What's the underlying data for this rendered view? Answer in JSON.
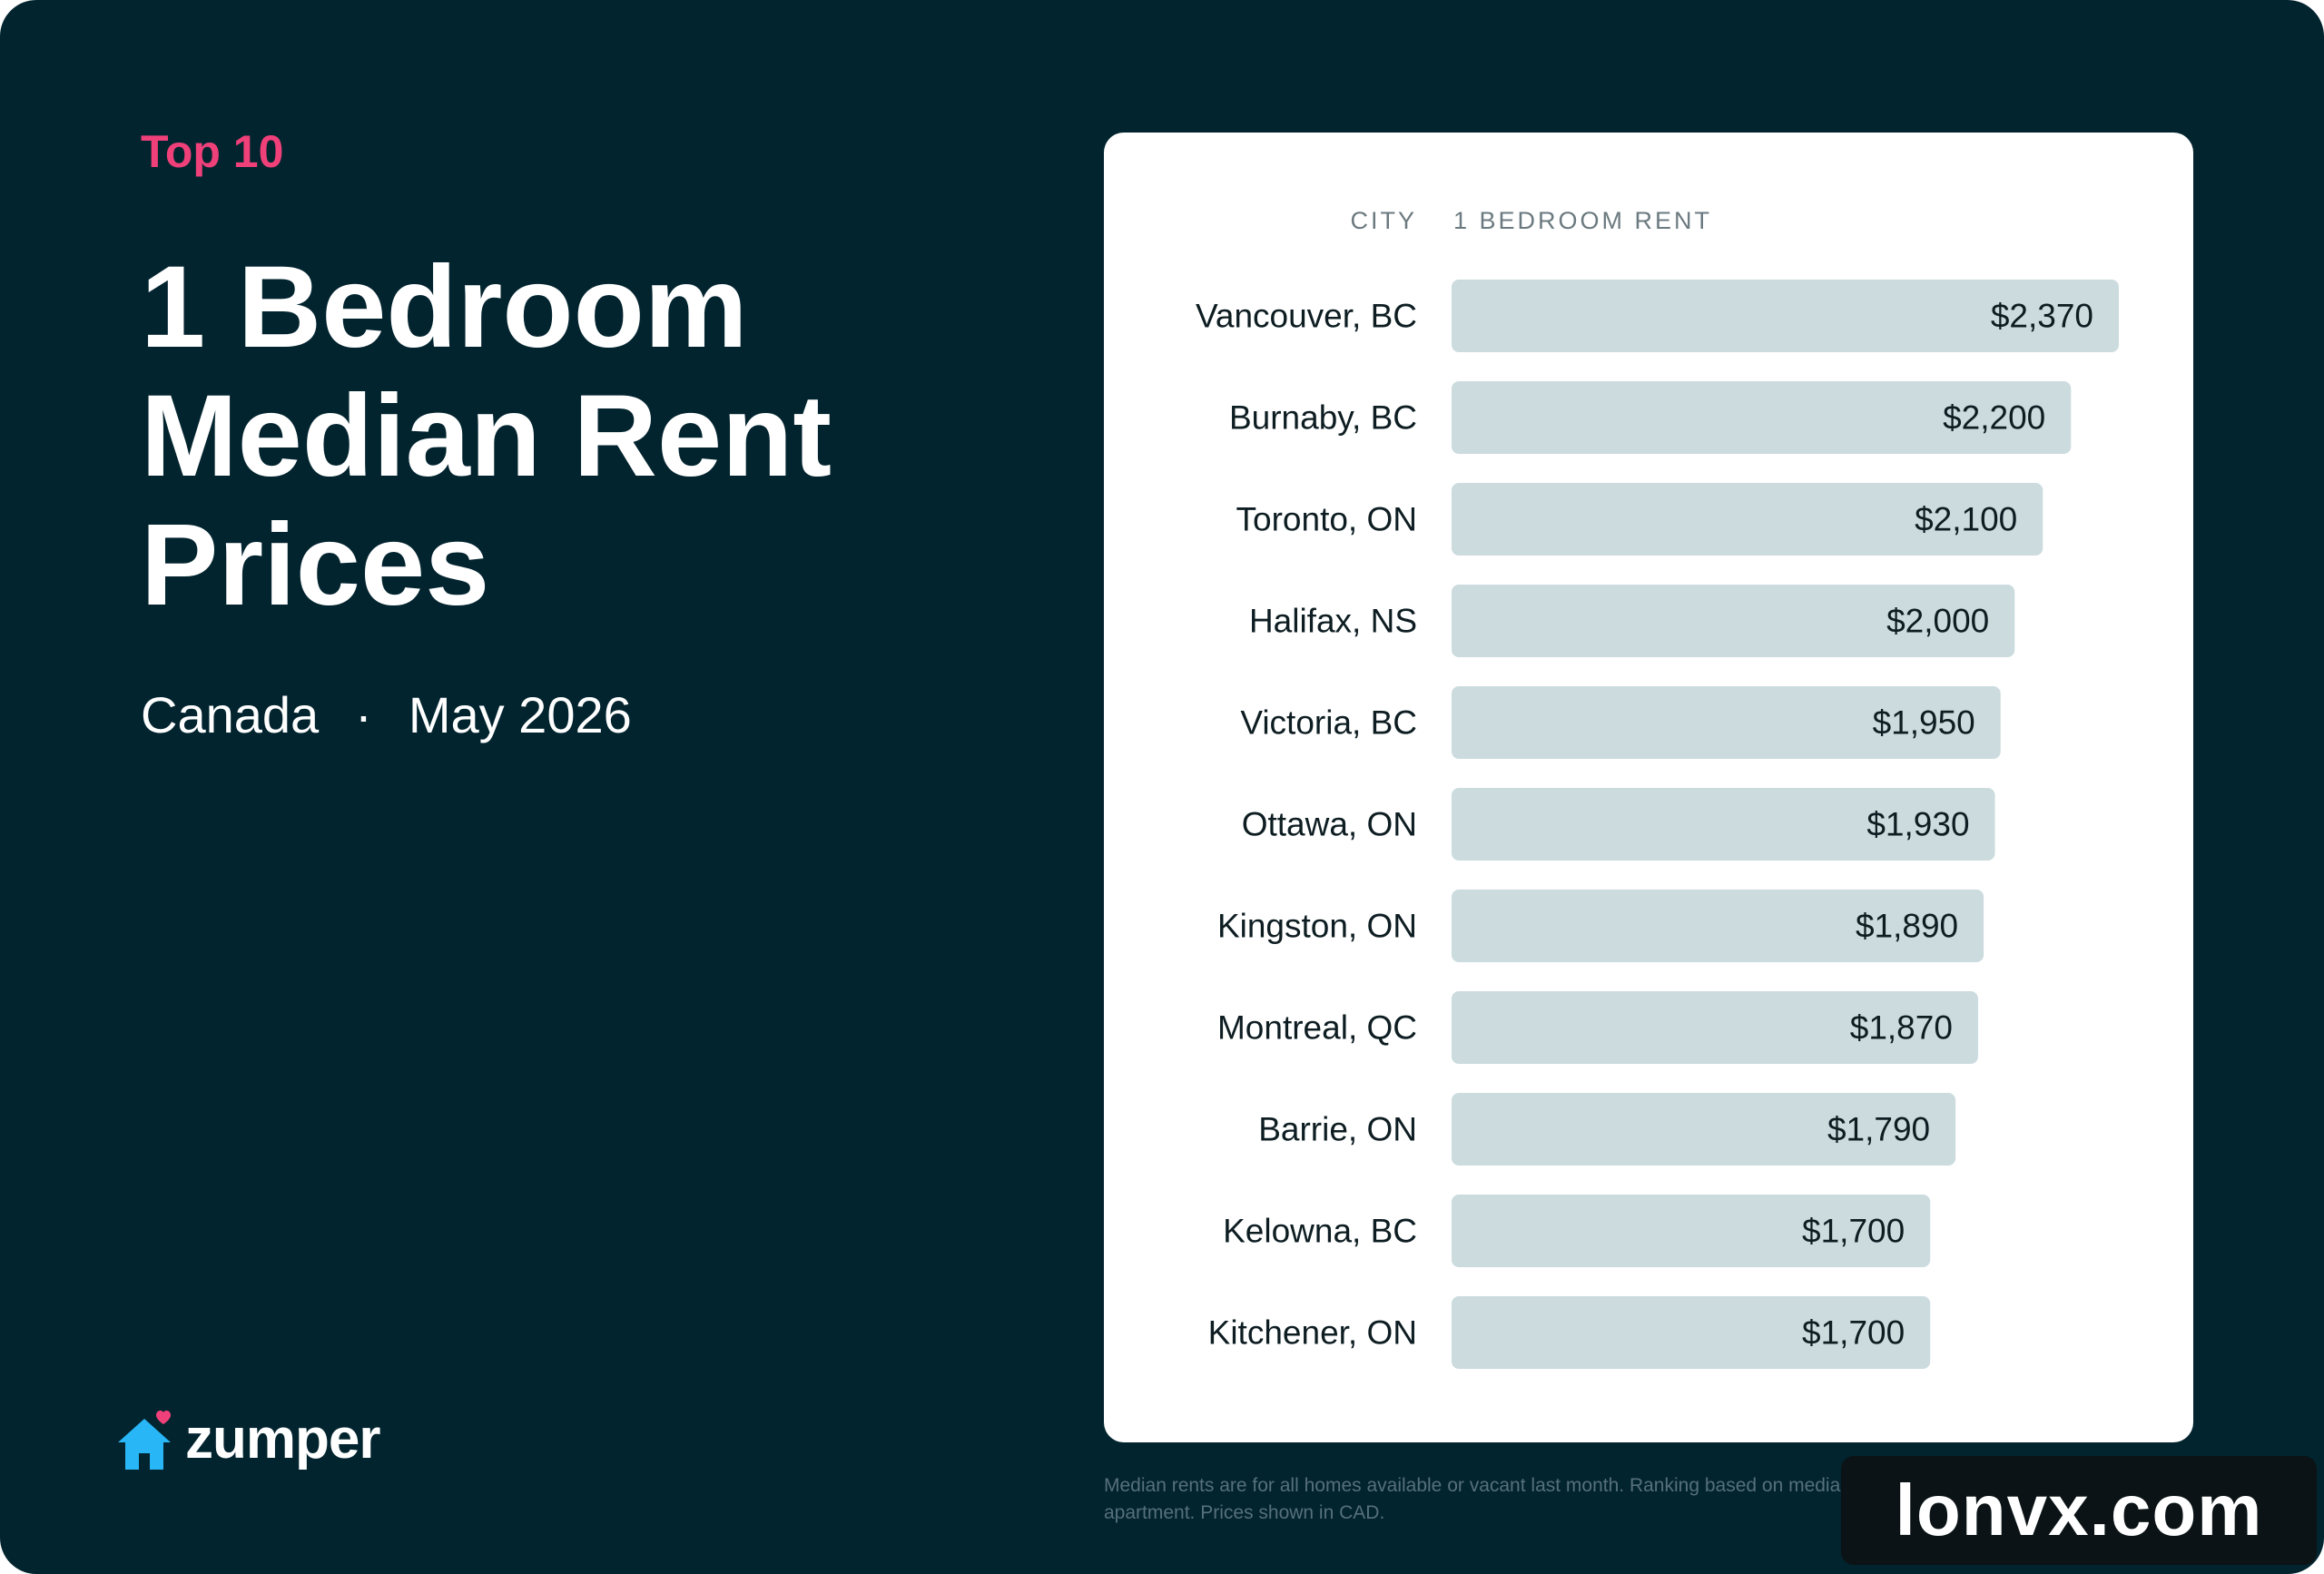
{
  "header": {
    "eyebrow": "Top 10",
    "title_lines": [
      "1 Bedroom",
      "Median Rent",
      "Prices"
    ],
    "region": "Canada",
    "separator": "·",
    "period": "May 2026"
  },
  "brand": {
    "name": "zumper",
    "logo_icon": "house-heart-icon",
    "colors": {
      "house": "#29b6f6",
      "heart": "#f0407a"
    }
  },
  "colors": {
    "background": "#02242f",
    "accent": "#f0407a",
    "bar": "#cbdbde",
    "card": "#ffffff",
    "label": "#0d1d22",
    "header_text": "#6b7a80"
  },
  "chart_data": {
    "type": "bar",
    "orientation": "horizontal",
    "column_headers": {
      "category": "CITY",
      "value": "1 BEDROOM RENT"
    },
    "categories": [
      "Vancouver, BC",
      "Burnaby, BC",
      "Toronto, ON",
      "Halifax, NS",
      "Victoria, BC",
      "Ottawa, ON",
      "Kingston, ON",
      "Montreal, QC",
      "Barrie, ON",
      "Kelowna, BC",
      "Kitchener, ON"
    ],
    "values": [
      2370,
      2200,
      2100,
      2000,
      1950,
      1930,
      1890,
      1870,
      1790,
      1700,
      1700
    ],
    "value_labels": [
      "$2,370",
      "$2,200",
      "$2,100",
      "$2,000",
      "$1,950",
      "$1,930",
      "$1,890",
      "$1,870",
      "$1,790",
      "$1,700",
      "$1,700"
    ],
    "unit": "CAD",
    "grid": false
  },
  "footnote": "Median rents are for all homes available or vacant last month. Ranking based on median price of a 1-bedroom apartment. Prices shown in CAD.",
  "watermark": "lonvx.com"
}
